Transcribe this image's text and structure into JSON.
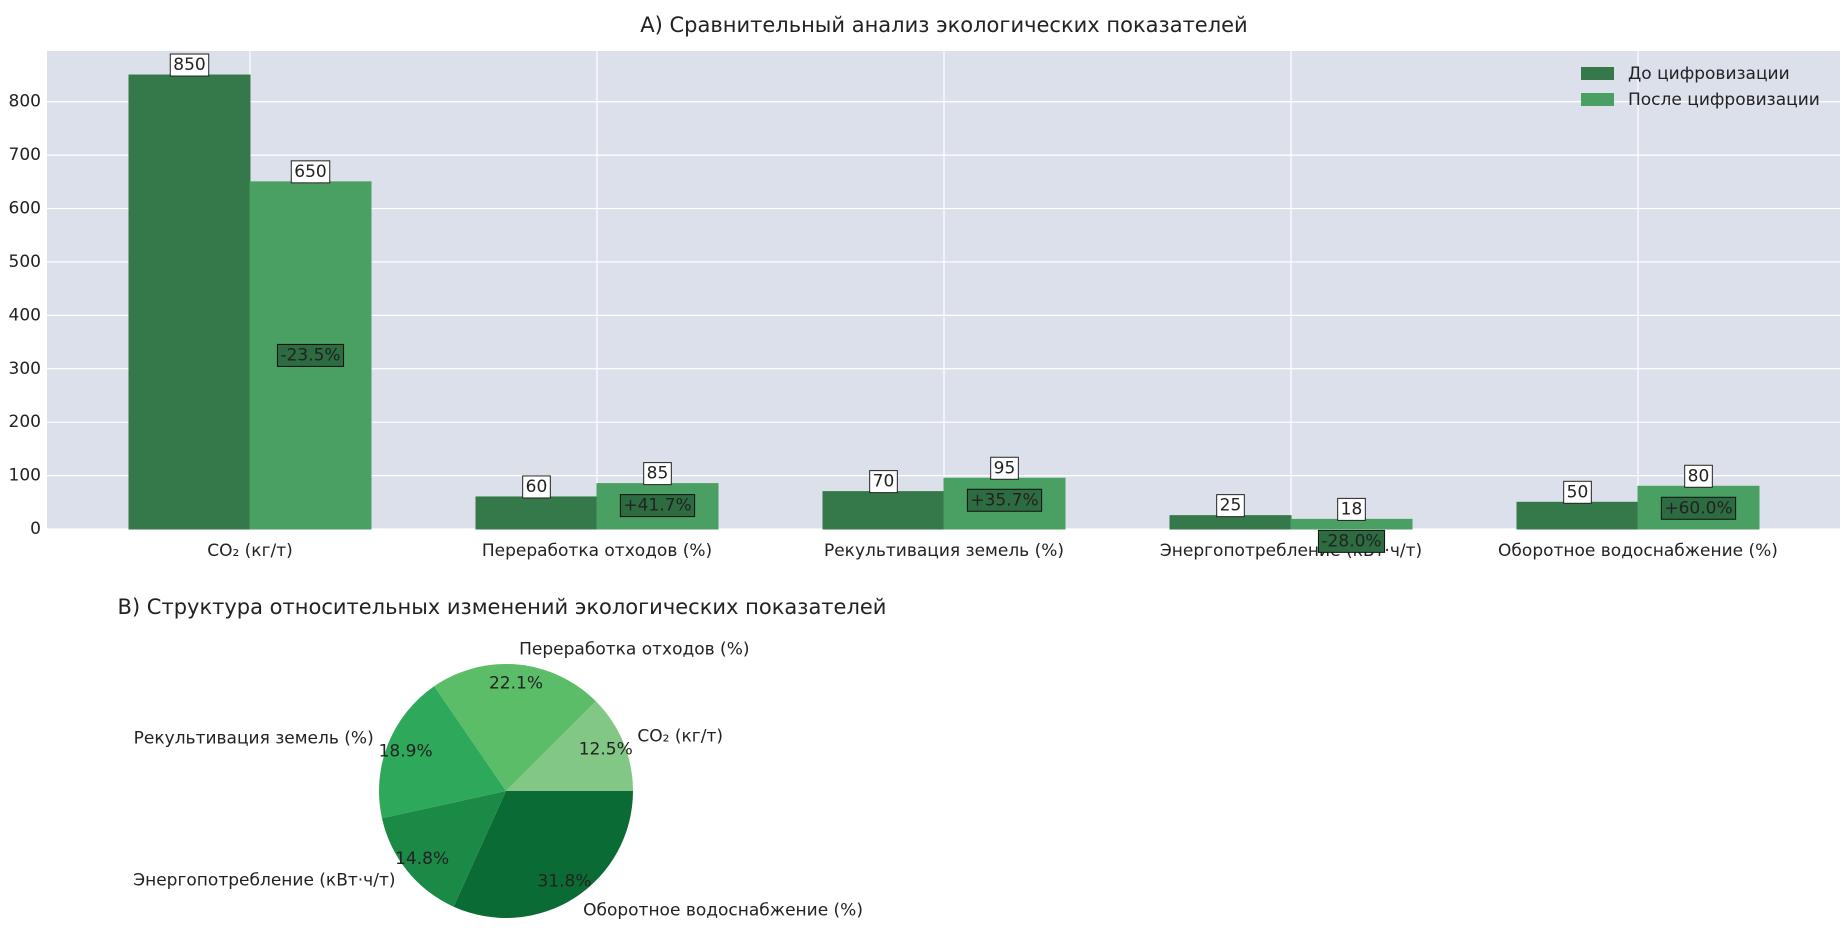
{
  "chart_data": [
    {
      "type": "bar",
      "title": "A) Сравнительный анализ экологических показателей",
      "categories": [
        "CO₂ (кг/т)",
        "Переработка отходов (%)",
        "Рекультивация земель (%)",
        "Энергопотребление (кВт·ч/т)",
        "Оборотное водоснабжение (%)"
      ],
      "series": [
        {
          "name": "До цифровизации",
          "color": "#35784a",
          "values": [
            850,
            60,
            70,
            25,
            50
          ]
        },
        {
          "name": "После цифровизации",
          "color": "#4aa063",
          "values": [
            650,
            85,
            95,
            18,
            80
          ]
        }
      ],
      "changes": [
        -23.5,
        41.7,
        35.7,
        -28.0,
        60.0
      ],
      "change_labels": [
        "-23.5%",
        "+41.7%",
        "+35.7%",
        "-28.0%",
        "+60.0%"
      ],
      "ylim": [
        0,
        895
      ],
      "yticks": [
        0,
        100,
        200,
        300,
        400,
        500,
        600,
        700,
        800
      ],
      "grid": true,
      "legend": "upper right"
    },
    {
      "type": "pie",
      "title": "B) Структура относительных изменений  экологических показателей",
      "categories": [
        "CO₂ (кг/т)",
        "Переработка отходов (%)",
        "Рекультивация земель (%)",
        "Энергопотребление (кВт·ч/т)",
        "Оборотное водоснабжение (%)"
      ],
      "values": [
        12.5,
        22.1,
        18.9,
        14.8,
        31.8
      ],
      "value_labels": [
        "12.5%",
        "22.1%",
        "18.9%",
        "14.8%",
        "31.8%"
      ],
      "colors": [
        "#82c785",
        "#5bbd68",
        "#2ea85a",
        "#1c8a47",
        "#0b6b35"
      ]
    }
  ]
}
